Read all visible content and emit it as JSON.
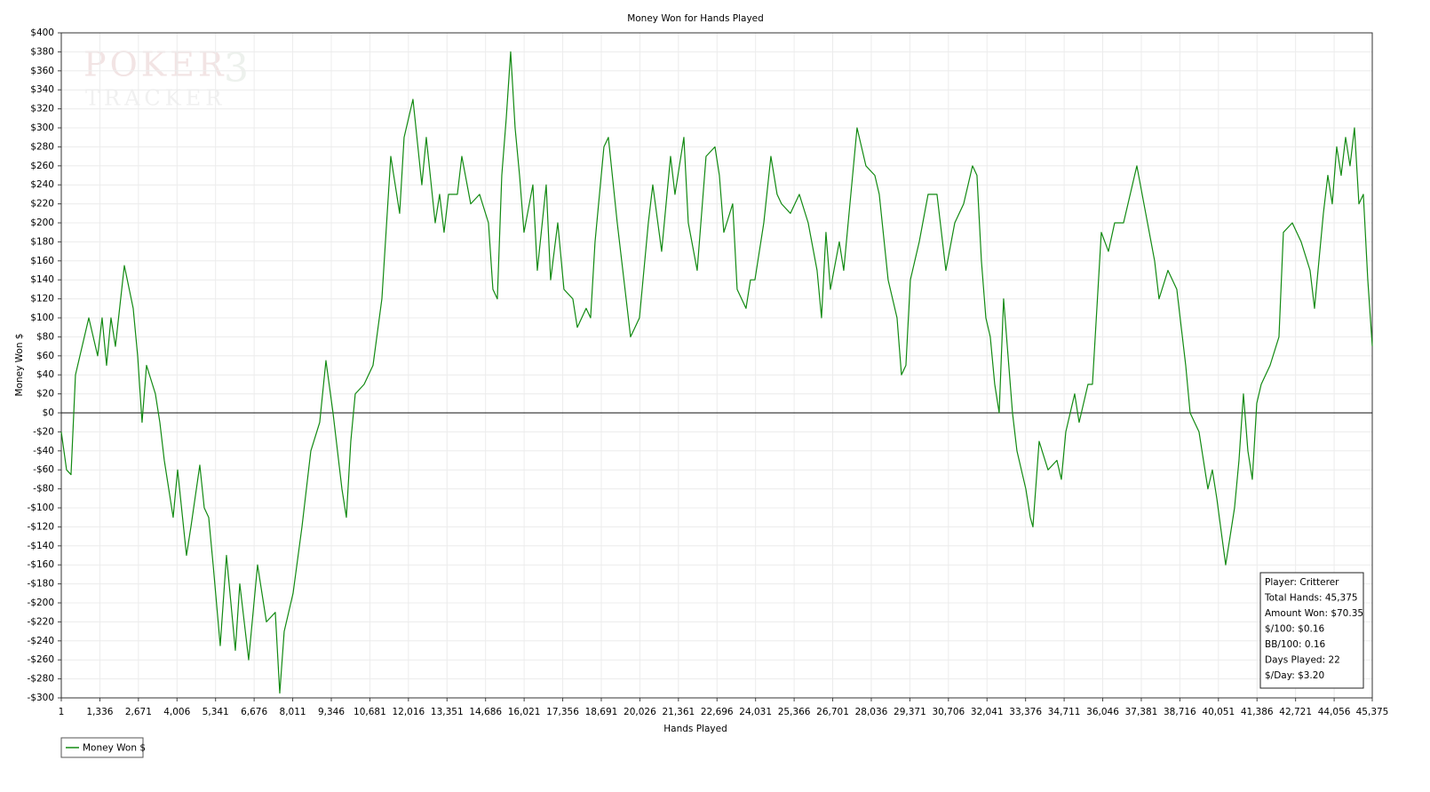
{
  "chart_data": {
    "type": "line",
    "title": "Money Won for Hands Played",
    "x_label": "Hands Played",
    "y_label": "Money Won $",
    "watermark": {
      "line1": "POKER",
      "mark": "3",
      "line2": "TRACKER"
    },
    "annotations": [
      "Player: Critterer",
      "Total Hands: 45,375",
      "Amount Won: $70.35",
      "$/100: $0.16",
      "BB/100: 0.16",
      "Days Played: 22",
      "$/Day: $3.20"
    ],
    "grid": true,
    "legend": "bottom-left",
    "xlim": [
      1,
      45375
    ],
    "ylim": [
      -300,
      400
    ],
    "xticks": [
      1,
      {
        "value": 1336,
        "label": "1,336"
      },
      {
        "value": 2671,
        "label": "2,671"
      },
      {
        "value": 4006,
        "label": "4,006"
      },
      {
        "value": 5341,
        "label": "5,341"
      },
      {
        "value": 6676,
        "label": "6,676"
      },
      {
        "value": 8011,
        "label": "8,011"
      },
      {
        "value": 9346,
        "label": "9,346"
      },
      {
        "value": 10681,
        "label": "10,681"
      },
      {
        "value": 12016,
        "label": "12,016"
      },
      {
        "value": 13351,
        "label": "13,351"
      },
      {
        "value": 14686,
        "label": "14,686"
      },
      {
        "value": 16021,
        "label": "16,021"
      },
      {
        "value": 17356,
        "label": "17,356"
      },
      {
        "value": 18691,
        "label": "18,691"
      },
      {
        "value": 20026,
        "label": "20,026"
      },
      {
        "value": 21361,
        "label": "21,361"
      },
      {
        "value": 22696,
        "label": "22,696"
      },
      {
        "value": 24031,
        "label": "24,031"
      },
      {
        "value": 25366,
        "label": "25,366"
      },
      {
        "value": 26701,
        "label": "26,701"
      },
      {
        "value": 28036,
        "label": "28,036"
      },
      {
        "value": 29371,
        "label": "29,371"
      },
      {
        "value": 30706,
        "label": "30,706"
      },
      {
        "value": 32041,
        "label": "32,041"
      },
      {
        "value": 33376,
        "label": "33,376"
      },
      {
        "value": 34711,
        "label": "34,711"
      },
      {
        "value": 36046,
        "label": "36,046"
      },
      {
        "value": 37381,
        "label": "37,381"
      },
      {
        "value": 38716,
        "label": "38,716"
      },
      {
        "value": 40051,
        "label": "40,051"
      },
      {
        "value": 41386,
        "label": "41,386"
      },
      {
        "value": 42721,
        "label": "42,721"
      },
      {
        "value": 44056,
        "label": "44,056"
      },
      {
        "value": 45375,
        "label": "45,375"
      }
    ],
    "yticks": [
      {
        "value": -300,
        "label": "-$300"
      },
      {
        "value": -280,
        "label": "-$280"
      },
      {
        "value": -260,
        "label": "-$260"
      },
      {
        "value": -240,
        "label": "-$240"
      },
      {
        "value": -220,
        "label": "-$220"
      },
      {
        "value": -200,
        "label": "-$200"
      },
      {
        "value": -180,
        "label": "-$180"
      },
      {
        "value": -160,
        "label": "-$160"
      },
      {
        "value": -140,
        "label": "-$140"
      },
      {
        "value": -120,
        "label": "-$120"
      },
      {
        "value": -100,
        "label": "-$100"
      },
      {
        "value": -80,
        "label": "-$80"
      },
      {
        "value": -60,
        "label": "-$60"
      },
      {
        "value": -40,
        "label": "-$40"
      },
      {
        "value": -20,
        "label": "-$20"
      },
      {
        "value": 0,
        "label": "$0"
      },
      {
        "value": 20,
        "label": "$20"
      },
      {
        "value": 40,
        "label": "$40"
      },
      {
        "value": 60,
        "label": "$60"
      },
      {
        "value": 80,
        "label": "$80"
      },
      {
        "value": 100,
        "label": "$100"
      },
      {
        "value": 120,
        "label": "$120"
      },
      {
        "value": 140,
        "label": "$140"
      },
      {
        "value": 160,
        "label": "$160"
      },
      {
        "value": 180,
        "label": "$180"
      },
      {
        "value": 200,
        "label": "$200"
      },
      {
        "value": 220,
        "label": "$220"
      },
      {
        "value": 240,
        "label": "$240"
      },
      {
        "value": 260,
        "label": "$260"
      },
      {
        "value": 280,
        "label": "$280"
      },
      {
        "value": 300,
        "label": "$300"
      },
      {
        "value": 320,
        "label": "$320"
      },
      {
        "value": 340,
        "label": "$340"
      },
      {
        "value": 360,
        "label": "$360"
      },
      {
        "value": 380,
        "label": "$380"
      },
      {
        "value": 400,
        "label": "$400"
      }
    ],
    "x": [
      1,
      184,
      338,
      492,
      646,
      953,
      1260,
      1414,
      1568,
      1721,
      1875,
      2183,
      2490,
      2644,
      2797,
      2951,
      3258,
      3412,
      3566,
      3873,
      4027,
      4334,
      4488,
      4795,
      4949,
      5103,
      5257,
      5502,
      5718,
      6025,
      6179,
      6486,
      6794,
      7101,
      7408,
      7562,
      7716,
      8023,
      8331,
      8638,
      8945,
      9161,
      9406,
      9714,
      9868,
      10021,
      10175,
      10482,
      10790,
      11097,
      11405,
      11712,
      11866,
      12173,
      12480,
      12634,
      12942,
      13095,
      13249,
      13403,
      13710,
      13864,
      14171,
      14479,
      14786,
      14940,
      15093,
      15247,
      15401,
      15554,
      15708,
      15862,
      16016,
      16323,
      16477,
      16784,
      16938,
      17184,
      17399,
      17706,
      17860,
      18167,
      18321,
      18475,
      18782,
      18936,
      19243,
      19551,
      19704,
      19858,
      20012,
      20319,
      20473,
      20780,
      21088,
      21241,
      21549,
      21702,
      22010,
      22317,
      22625,
      22778,
      22932,
      23239,
      23393,
      23700,
      23854,
      24008,
      24315,
      24561,
      24776,
      24930,
      25237,
      25545,
      25852,
      26159,
      26313,
      26467,
      26621,
      26928,
      27082,
      27236,
      27543,
      27850,
      28158,
      28312,
      28619,
      28927,
      29080,
      29234,
      29388,
      29695,
      30002,
      30310,
      30617,
      30925,
      31232,
      31539,
      31693,
      31847,
      32001,
      32154,
      32308,
      32462,
      32615,
      32769,
      32923,
      33077,
      33384,
      33538,
      33630,
      33845,
      34153,
      34460,
      34614,
      34768,
      35075,
      35229,
      35536,
      35690,
      35997,
      36243,
      36458,
      36766,
      37073,
      37227,
      37534,
      37842,
      37995,
      38303,
      38610,
      38764,
      38918,
      39071,
      39379,
      39532,
      39686,
      39840,
      39994,
      40301,
      40455,
      40608,
      40762,
      40916,
      41070,
      41223,
      41377,
      41531,
      41838,
      42146,
      42299,
      42607,
      42914,
      43222,
      43376,
      43529,
      43683,
      43837,
      43990,
      44144,
      44298,
      44452,
      44605,
      44759,
      44913,
      45066,
      45220,
      45375
    ],
    "series": [
      {
        "name": "Money Won $",
        "color": "#128a12",
        "values": [
          -20,
          -60,
          -65,
          40,
          60,
          100,
          60,
          100,
          50,
          100,
          70,
          155,
          110,
          60,
          -10,
          50,
          20,
          -10,
          -50,
          -110,
          -60,
          -150,
          -120,
          -55,
          -100,
          -110,
          -160,
          -245,
          -150,
          -250,
          -180,
          -260,
          -160,
          -220,
          -210,
          -295,
          -230,
          -190,
          -120,
          -40,
          -10,
          55,
          0,
          -80,
          -110,
          -30,
          20,
          30,
          50,
          120,
          270,
          210,
          290,
          330,
          240,
          290,
          200,
          230,
          190,
          230,
          230,
          270,
          220,
          230,
          200,
          130,
          120,
          250,
          310,
          380,
          300,
          250,
          190,
          240,
          150,
          240,
          140,
          200,
          130,
          120,
          90,
          110,
          100,
          180,
          280,
          290,
          200,
          120,
          80,
          90,
          100,
          200,
          240,
          170,
          270,
          230,
          290,
          200,
          150,
          270,
          280,
          250,
          190,
          220,
          130,
          110,
          140,
          140,
          200,
          270,
          230,
          220,
          210,
          230,
          200,
          150,
          100,
          190,
          130,
          180,
          150,
          200,
          300,
          260,
          250,
          230,
          140,
          100,
          40,
          50,
          140,
          180,
          230,
          230,
          150,
          200,
          220,
          260,
          250,
          160,
          100,
          80,
          30,
          0,
          120,
          60,
          0,
          -40,
          -80,
          -110,
          -120,
          -30,
          -60,
          -50,
          -70,
          -20,
          20,
          -10,
          30,
          30,
          190,
          170,
          200,
          200,
          240,
          260,
          210,
          160,
          120,
          150,
          130,
          90,
          50,
          0,
          -20,
          -50,
          -80,
          -60,
          -90,
          -160,
          -130,
          -100,
          -50,
          20,
          -40,
          -70,
          10,
          30,
          50,
          80,
          190,
          200,
          180,
          150,
          110,
          160,
          210,
          250,
          220,
          280,
          250,
          290,
          260,
          300,
          220,
          230,
          140,
          70.35
        ]
      }
    ]
  }
}
